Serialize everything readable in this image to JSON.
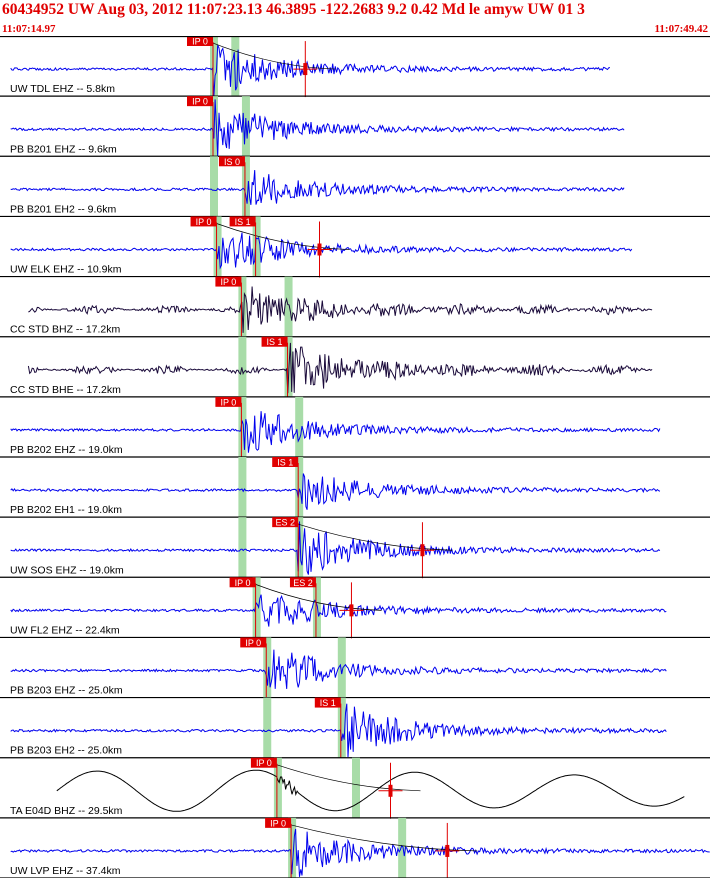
{
  "header": {
    "title": "60434952 UW Aug 03, 2012 11:07:23.13   46.3895 -122.2683  9.2 0.42 Md le amyw UW 01   3",
    "time_start": "11:07:14.97",
    "time_end": "11:07:49.42"
  },
  "colors": {
    "title": "#e00000",
    "trace_blue": "#0000ee",
    "trace_dark": "#1a0a3a",
    "trace_black": "#000000",
    "pick_box": "#e00000",
    "pick_window": "#a8dca8",
    "separator": "#000000"
  },
  "chart_data": {
    "type": "seismogram",
    "time_range": [
      "11:07:14.97",
      "11:07:49.42"
    ],
    "traces": [
      {
        "label": "UW TDL EHZ -- 5.8km",
        "color": "trace_blue",
        "onset": 0.3,
        "amplitude": 1.0,
        "tail": 0.86,
        "picks": [
          {
            "label": "IP 0",
            "t": 0.3,
            "win": true
          }
        ],
        "extra_win": [
          0.33
        ],
        "red_mark": 0.43,
        "coda": true
      },
      {
        "label": "PB B201 EHZ -- 9.6km",
        "color": "trace_blue",
        "onset": 0.3,
        "amplitude": 1.0,
        "tail": 0.88,
        "picks": [
          {
            "label": "IP 0",
            "t": 0.3,
            "win": true
          }
        ],
        "extra_win": [
          0.345
        ],
        "red_mark": null,
        "coda": false
      },
      {
        "label": "PB B201 EH2 -- 9.6km",
        "color": "trace_blue",
        "onset": 0.345,
        "amplitude": 0.7,
        "tail": 0.88,
        "picks": [
          {
            "label": "IS 0",
            "t": 0.345,
            "win": true
          }
        ],
        "extra_win": [
          0.3
        ],
        "red_mark": null,
        "coda": false
      },
      {
        "label": "UW ELK EHZ -- 10.9km",
        "color": "trace_blue",
        "onset": 0.305,
        "amplitude": 0.9,
        "tail": 0.89,
        "picks": [
          {
            "label": "IP 0",
            "t": 0.305,
            "win": true
          },
          {
            "label": "IS 1",
            "t": 0.36,
            "win": true
          }
        ],
        "extra_win": [],
        "red_mark": 0.45,
        "coda": true
      },
      {
        "label": "CC STD BHZ -- 17.2km",
        "color": "trace_dark",
        "onset": 0.34,
        "amplitude": 0.8,
        "tail": 0.92,
        "picks": [
          {
            "label": "IP 0",
            "t": 0.34,
            "win": true
          }
        ],
        "extra_win": [
          0.405
        ],
        "red_mark": null,
        "coda": false
      },
      {
        "label": "CC STD BHE -- 17.2km",
        "color": "trace_dark",
        "onset": 0.405,
        "amplitude": 1.0,
        "tail": 0.92,
        "picks": [
          {
            "label": "IS 1",
            "t": 0.405,
            "win": true
          }
        ],
        "extra_win": [
          0.34
        ],
        "red_mark": null,
        "coda": false
      },
      {
        "label": "PB B202 EHZ -- 19.0km",
        "color": "trace_blue",
        "onset": 0.34,
        "amplitude": 0.9,
        "tail": 0.93,
        "picks": [
          {
            "label": "IP 0",
            "t": 0.34,
            "win": true
          }
        ],
        "extra_win": [
          0.42
        ],
        "red_mark": null,
        "coda": false
      },
      {
        "label": "PB B202 EH1 -- 19.0km",
        "color": "trace_blue",
        "onset": 0.42,
        "amplitude": 0.7,
        "tail": 0.93,
        "picks": [
          {
            "label": "IS 1",
            "t": 0.42,
            "win": true
          }
        ],
        "extra_win": [
          0.34
        ],
        "red_mark": null,
        "coda": false
      },
      {
        "label": "UW SOS EHZ -- 19.0km",
        "color": "trace_blue",
        "onset": 0.42,
        "amplitude": 1.0,
        "tail": 0.93,
        "picks": [
          {
            "label": "ES 2",
            "t": 0.42,
            "win": true
          }
        ],
        "extra_win": [
          0.34
        ],
        "red_mark": 0.595,
        "coda": true
      },
      {
        "label": "UW FL2 EHZ -- 22.4km",
        "color": "trace_blue",
        "onset": 0.36,
        "amplitude": 0.8,
        "tail": 0.94,
        "picks": [
          {
            "label": "IP 0",
            "t": 0.36,
            "win": true
          },
          {
            "label": "ES 2",
            "t": 0.445,
            "win": true
          }
        ],
        "extra_win": [],
        "red_mark": 0.495,
        "coda": true
      },
      {
        "label": "PB B203 EHZ -- 25.0km",
        "color": "trace_blue",
        "onset": 0.375,
        "amplitude": 0.9,
        "tail": 0.94,
        "picks": [
          {
            "label": "IP 0",
            "t": 0.375,
            "win": true
          }
        ],
        "extra_win": [
          0.48
        ],
        "red_mark": null,
        "coda": false
      },
      {
        "label": "PB B203 EH2 -- 25.0km",
        "color": "trace_blue",
        "onset": 0.48,
        "amplitude": 1.0,
        "tail": 0.94,
        "picks": [
          {
            "label": "IS 1",
            "t": 0.48,
            "win": true
          }
        ],
        "extra_win": [
          0.375
        ],
        "red_mark": null,
        "coda": false
      },
      {
        "label": "TA E04D BHZ -- 29.5km",
        "color": "trace_black",
        "onset": 0.39,
        "amplitude": 0.6,
        "tail": 0.965,
        "picks": [
          {
            "label": "IP 0",
            "t": 0.39,
            "win": true
          }
        ],
        "extra_win": [
          0.5
        ],
        "red_mark": 0.55,
        "coda": true,
        "long_period": true
      },
      {
        "label": "UW LVP EHZ -- 37.4km",
        "color": "trace_blue",
        "onset": 0.41,
        "amplitude": 1.0,
        "tail": 1.0,
        "picks": [
          {
            "label": "IP 0",
            "t": 0.41,
            "win": true
          }
        ],
        "extra_win": [
          0.565
        ],
        "red_mark": 0.63,
        "coda": true
      }
    ]
  }
}
